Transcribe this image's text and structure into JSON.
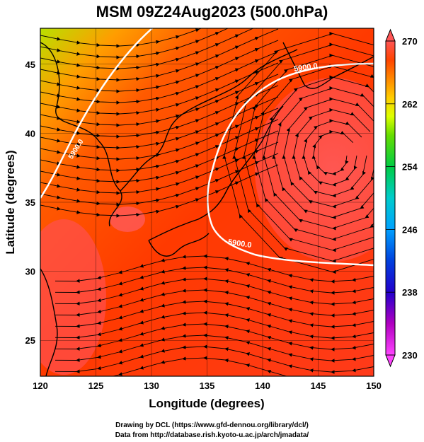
{
  "title": "MSM 09Z24Aug2023 (500.0hPa)",
  "axes": {
    "xlabel": "Longitude (degrees)",
    "ylabel": "Latitude  (degrees)",
    "xticks": [
      120,
      125,
      130,
      135,
      140,
      145,
      150
    ],
    "yticks": [
      25,
      30,
      35,
      40,
      45
    ],
    "xlim": [
      120,
      150
    ],
    "ylim": [
      22.4,
      47.6
    ]
  },
  "colorbar": {
    "ticks": [
      270,
      262,
      254,
      246,
      238,
      230
    ],
    "range": [
      230,
      270
    ],
    "colors": [
      "#ff55ff",
      "#cc00cc",
      "#3300cc",
      "#0033cc",
      "#0099ff",
      "#00cccc",
      "#00cc66",
      "#33cc00",
      "#99ff00",
      "#ffff00",
      "#ffcc00",
      "#ff9900",
      "#ff6600",
      "#ff3300",
      "#ff5555"
    ]
  },
  "contour_label": "5900.0",
  "credits": {
    "line1": "Drawing by DCL (https://www.gfd-dennou.org/library/dcl/)",
    "line2": "Data from http://database.rish.kyoto-u.ac.jp/arch/jmadata/"
  }
}
